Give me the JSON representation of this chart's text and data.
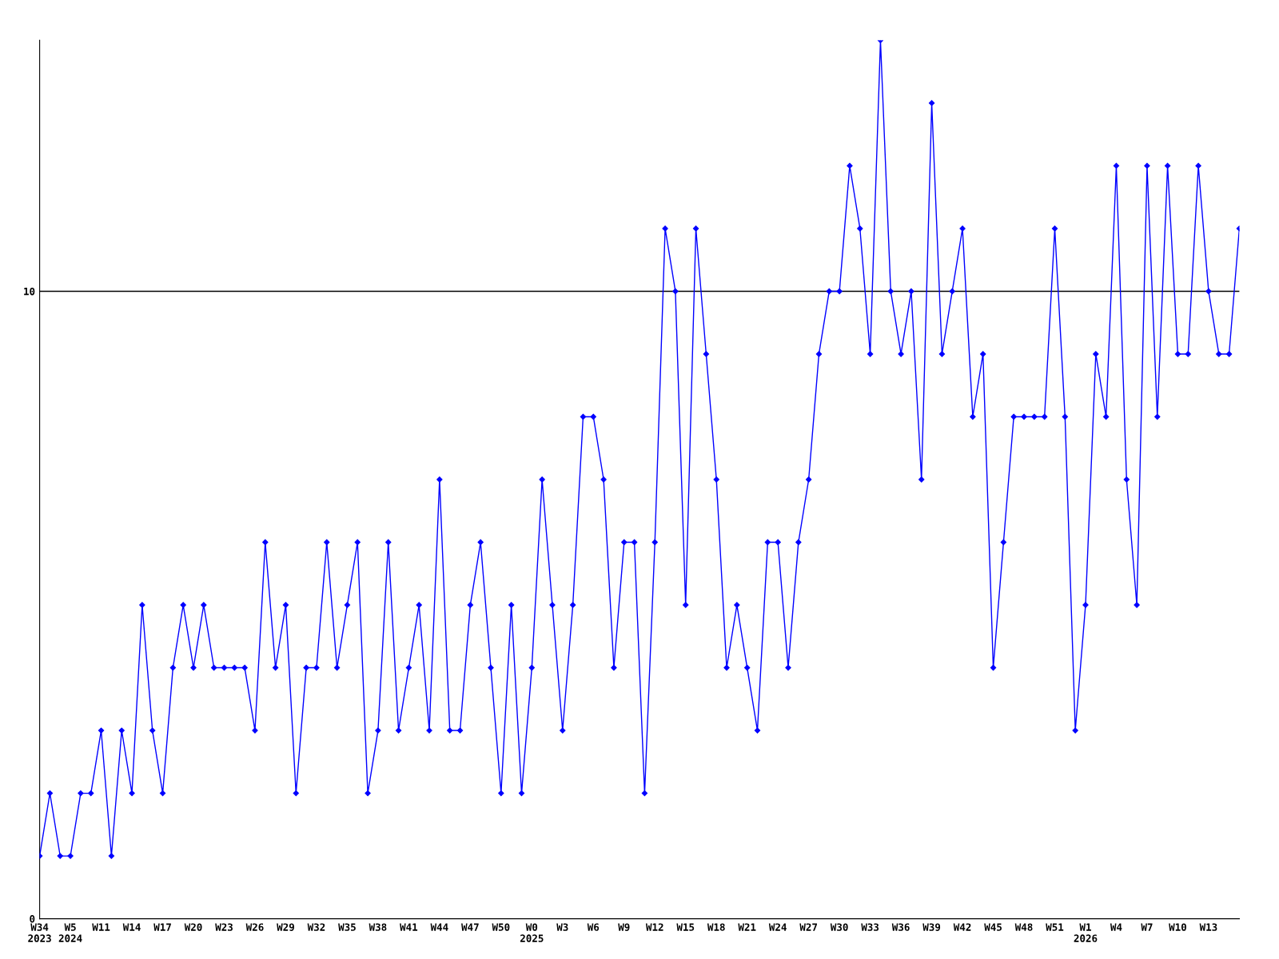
{
  "chart_data": {
    "type": "line",
    "categories": [
      "W34\n2023",
      null,
      null,
      "W5\n2024",
      null,
      null,
      "W11",
      null,
      null,
      "W14",
      null,
      null,
      "W17",
      null,
      null,
      "W20",
      null,
      null,
      "W23",
      null,
      null,
      "W26",
      null,
      null,
      "W29",
      null,
      null,
      "W32",
      null,
      null,
      "W35",
      null,
      null,
      "W38",
      null,
      null,
      "W41",
      null,
      null,
      "W44",
      null,
      null,
      "W47",
      null,
      null,
      "W50",
      null,
      null,
      "W0\n2025",
      null,
      null,
      "W3",
      null,
      null,
      "W6",
      null,
      null,
      "W9",
      null,
      null,
      "W12",
      null,
      null,
      "W15",
      null,
      null,
      "W18",
      null,
      null,
      "W21",
      null,
      null,
      "W24",
      null,
      null,
      "W27",
      null,
      null,
      "W30",
      null,
      null,
      "W33",
      null,
      null,
      "W36",
      null,
      null,
      "W39",
      null,
      null,
      "W42",
      null,
      null,
      "W45",
      null,
      null,
      "W48",
      null,
      null,
      "W51",
      null,
      null,
      "W1\n2026",
      null,
      null,
      "W4",
      null,
      null,
      "W7",
      null,
      null,
      "W10",
      null,
      null,
      "W13",
      null,
      null,
      null
    ],
    "series": [
      {
        "color": "#0000ff",
        "values": [
          1,
          2,
          1,
          1,
          2,
          2,
          3,
          1,
          3,
          2,
          5,
          3,
          2,
          4,
          5,
          4,
          5,
          4,
          4,
          4,
          4,
          3,
          6,
          4,
          5,
          2,
          4,
          4,
          6,
          4,
          5,
          6,
          2,
          3,
          6,
          3,
          4,
          5,
          3,
          7,
          3,
          3,
          5,
          6,
          4,
          2,
          5,
          2,
          4,
          7,
          5,
          3,
          5,
          8,
          8,
          7,
          4,
          6,
          6,
          2,
          6,
          11,
          10,
          5,
          11,
          9,
          7,
          4,
          5,
          4,
          3,
          6,
          6,
          4,
          6,
          7,
          9,
          10,
          10,
          12,
          11,
          9,
          14,
          10,
          9,
          10,
          7,
          13,
          9,
          10,
          11,
          8,
          9,
          4,
          6,
          8,
          8,
          8,
          8,
          11,
          8,
          3,
          5,
          9,
          8,
          12,
          7,
          5,
          12,
          8,
          12,
          9,
          9,
          12,
          10,
          9,
          9,
          11
        ]
      }
    ],
    "ylim": [
      0,
      14
    ],
    "yticks": [
      0,
      10
    ],
    "grid": "y",
    "marker": "diamond",
    "line_style": "solid",
    "legend": false
  }
}
